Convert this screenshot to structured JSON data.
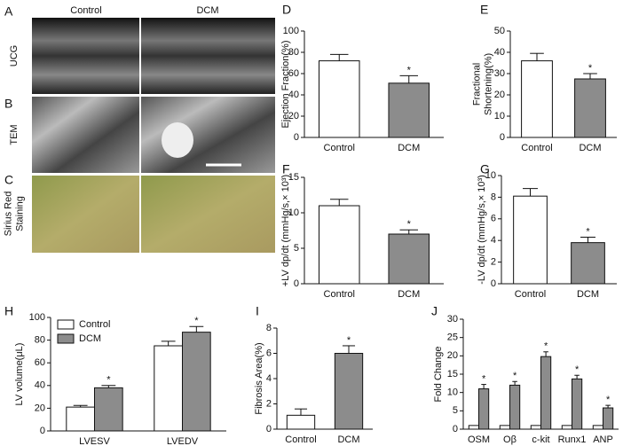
{
  "figure": {
    "panel_labels": [
      "A",
      "B",
      "C"
    ],
    "image_columns": [
      "Control",
      "DCM"
    ],
    "image_rows": [
      [
        "UCG"
      ],
      [
        "TEM"
      ],
      [
        "Sirius Red",
        "Staining"
      ]
    ]
  },
  "chart_data": [
    {
      "type": "bar",
      "panel": "D",
      "ylabel": [
        "Ejection Fraction(%)"
      ],
      "categories": [
        "Control",
        "DCM"
      ],
      "values": [
        72,
        51
      ],
      "errors": [
        6,
        7
      ],
      "colors": [
        "#ffffff",
        "#8c8c8c"
      ],
      "marks": [
        null,
        "*"
      ],
      "ylim": [
        0,
        100
      ],
      "yticks": [
        0,
        20,
        40,
        60,
        80,
        100
      ]
    },
    {
      "type": "bar",
      "panel": "E",
      "ylabel": [
        "Fractional",
        "Shortening(%)"
      ],
      "categories": [
        "Control",
        "DCM"
      ],
      "values": [
        36,
        27.5
      ],
      "errors": [
        3.5,
        2.5
      ],
      "colors": [
        "#ffffff",
        "#8c8c8c"
      ],
      "marks": [
        null,
        "*"
      ],
      "ylim": [
        0,
        50
      ],
      "yticks": [
        0,
        10,
        20,
        30,
        40,
        50
      ]
    },
    {
      "type": "bar",
      "panel": "F",
      "ylabel": [
        "+LV dp/dt (mmHg/s,× 10³)"
      ],
      "categories": [
        "Control",
        "DCM"
      ],
      "values": [
        11,
        7
      ],
      "errors": [
        0.9,
        0.6
      ],
      "colors": [
        "#ffffff",
        "#8c8c8c"
      ],
      "marks": [
        null,
        "*"
      ],
      "ylim": [
        0,
        15
      ],
      "yticks": [
        0,
        5,
        10,
        15
      ]
    },
    {
      "type": "bar",
      "panel": "G",
      "ylabel": [
        "-LV dp/dt (mmHg/s,× 10³)"
      ],
      "categories": [
        "Control",
        "DCM"
      ],
      "values": [
        8.1,
        3.8
      ],
      "errors": [
        0.7,
        0.5
      ],
      "colors": [
        "#ffffff",
        "#8c8c8c"
      ],
      "marks": [
        null,
        "*"
      ],
      "ylim": [
        0,
        10
      ],
      "yticks": [
        0,
        2,
        4,
        6,
        8,
        10
      ]
    },
    {
      "type": "grouped_bar",
      "panel": "H",
      "ylabel": [
        "LV volume(μL)"
      ],
      "categories": [
        "LVESV",
        "LVEDV"
      ],
      "series": [
        {
          "name": "Control",
          "color": "#ffffff",
          "values": [
            21,
            75
          ],
          "errors": [
            1.5,
            4
          ]
        },
        {
          "name": "DCM",
          "color": "#8c8c8c",
          "values": [
            38,
            87
          ],
          "errors": [
            2,
            5
          ],
          "marks": [
            "*",
            "*"
          ]
        }
      ],
      "legend": "upper left",
      "ylim": [
        0,
        100
      ],
      "yticks": [
        0,
        20,
        40,
        60,
        80,
        100
      ]
    },
    {
      "type": "bar",
      "panel": "I",
      "ylabel": [
        "Fibrosis Area(%)"
      ],
      "categories": [
        "Control",
        "DCM"
      ],
      "values": [
        1.1,
        6.0
      ],
      "errors": [
        0.5,
        0.6
      ],
      "colors": [
        "#ffffff",
        "#8c8c8c"
      ],
      "marks": [
        null,
        "*"
      ],
      "ylim": [
        0,
        8
      ],
      "yticks": [
        0,
        2,
        4,
        6,
        8
      ]
    },
    {
      "type": "grouped_bar",
      "panel": "J",
      "ylabel": [
        "Fold Change"
      ],
      "categories": [
        "OSM",
        "Oβ",
        "c-kit",
        "Runx1",
        "ANP"
      ],
      "series": [
        {
          "color": "#ffffff",
          "values": [
            1,
            1,
            1,
            1,
            1
          ]
        },
        {
          "color": "#8c8c8c",
          "values": [
            11,
            12,
            19.8,
            13.7,
            5.8
          ],
          "errors": [
            1.2,
            1,
            1.3,
            1,
            0.7
          ],
          "marks": [
            "*",
            "*",
            "*",
            "*",
            "*"
          ]
        }
      ],
      "ylim": [
        0,
        30
      ],
      "yticks": [
        0,
        5,
        10,
        15,
        20,
        25,
        30
      ]
    }
  ]
}
